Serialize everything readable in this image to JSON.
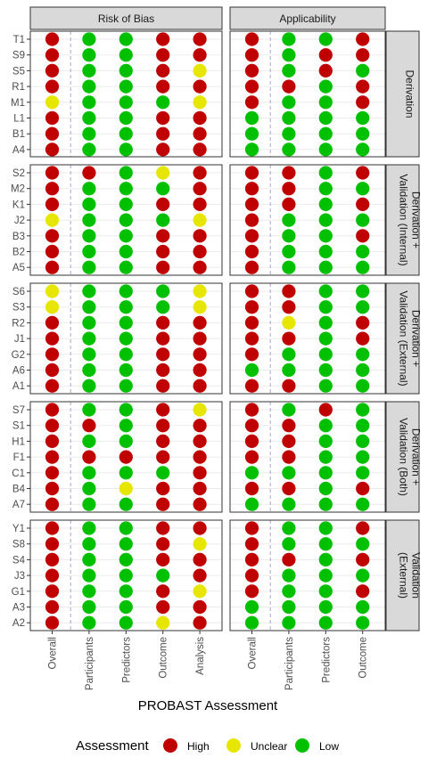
{
  "chart_data": {
    "type": "dot-matrix",
    "xlabel": "PROBAST Assessment",
    "colors": {
      "High": "#c00000",
      "Unclear": "#e6e600",
      "Low": "#00c000"
    },
    "legend": {
      "title": "Assessment",
      "position": "bottom",
      "entries": [
        {
          "label": "High",
          "color": "#c00000"
        },
        {
          "label": "Unclear",
          "color": "#e6e600"
        },
        {
          "label": "Low",
          "color": "#00c000"
        }
      ]
    },
    "columns": [
      {
        "title": "Risk of Bias",
        "categories": [
          "Overall",
          "Participants",
          "Predictors",
          "Outcome",
          "Analysis"
        ]
      },
      {
        "title": "Applicability",
        "categories": [
          "Overall",
          "Participants",
          "Predictors",
          "Outcome"
        ]
      }
    ],
    "rows": [
      {
        "title": [
          "Derivation"
        ],
        "studies": [
          "T1",
          "S9",
          "S5",
          "R1",
          "M1",
          "L1",
          "B1",
          "A4"
        ],
        "rob": [
          [
            "High",
            "Low",
            "Low",
            "High",
            "High"
          ],
          [
            "High",
            "Low",
            "Low",
            "High",
            "High"
          ],
          [
            "High",
            "Low",
            "Low",
            "High",
            "Unclear"
          ],
          [
            "High",
            "Low",
            "Low",
            "High",
            "High"
          ],
          [
            "Unclear",
            "Low",
            "Low",
            "Low",
            "Unclear"
          ],
          [
            "High",
            "Low",
            "Low",
            "High",
            "High"
          ],
          [
            "High",
            "Low",
            "Low",
            "High",
            "High"
          ],
          [
            "High",
            "Low",
            "Low",
            "High",
            "High"
          ]
        ],
        "app": [
          [
            "High",
            "Low",
            "Low",
            "High"
          ],
          [
            "High",
            "Low",
            "High",
            "High"
          ],
          [
            "High",
            "Low",
            "High",
            "Low"
          ],
          [
            "High",
            "High",
            "Low",
            "High"
          ],
          [
            "High",
            "Low",
            "Low",
            "High"
          ],
          [
            "Low",
            "Low",
            "Low",
            "Low"
          ],
          [
            "Low",
            "Low",
            "Low",
            "Low"
          ],
          [
            "Low",
            "Low",
            "Low",
            "Low"
          ]
        ]
      },
      {
        "title": [
          "Derivation +",
          "Validation (Internal)"
        ],
        "studies": [
          "S2",
          "M2",
          "K1",
          "J2",
          "B3",
          "B2",
          "A5"
        ],
        "rob": [
          [
            "High",
            "High",
            "Low",
            "Unclear",
            "High"
          ],
          [
            "High",
            "Low",
            "Low",
            "Low",
            "High"
          ],
          [
            "High",
            "Low",
            "Low",
            "High",
            "High"
          ],
          [
            "Unclear",
            "Low",
            "Low",
            "Low",
            "Unclear"
          ],
          [
            "High",
            "Low",
            "Low",
            "High",
            "High"
          ],
          [
            "High",
            "Low",
            "Low",
            "High",
            "High"
          ],
          [
            "High",
            "Low",
            "Low",
            "High",
            "High"
          ]
        ],
        "app": [
          [
            "High",
            "High",
            "Low",
            "High"
          ],
          [
            "High",
            "High",
            "Low",
            "Low"
          ],
          [
            "High",
            "High",
            "Low",
            "High"
          ],
          [
            "High",
            "Low",
            "Low",
            "Low"
          ],
          [
            "High",
            "Low",
            "Low",
            "High"
          ],
          [
            "High",
            "Low",
            "Low",
            "Low"
          ],
          [
            "High",
            "Low",
            "Low",
            "Low"
          ]
        ]
      },
      {
        "title": [
          "Derivation +",
          "Validation (External)"
        ],
        "studies": [
          "S6",
          "S3",
          "R2",
          "J1",
          "G2",
          "A6",
          "A1"
        ],
        "rob": [
          [
            "Unclear",
            "Low",
            "Low",
            "Low",
            "Unclear"
          ],
          [
            "Unclear",
            "Low",
            "Low",
            "Low",
            "Unclear"
          ],
          [
            "High",
            "Low",
            "Low",
            "High",
            "High"
          ],
          [
            "High",
            "Low",
            "Low",
            "High",
            "High"
          ],
          [
            "High",
            "Low",
            "Low",
            "High",
            "High"
          ],
          [
            "High",
            "Low",
            "Low",
            "High",
            "High"
          ],
          [
            "High",
            "Low",
            "Low",
            "High",
            "High"
          ]
        ],
        "app": [
          [
            "High",
            "High",
            "Low",
            "Low"
          ],
          [
            "High",
            "High",
            "Low",
            "Low"
          ],
          [
            "High",
            "Unclear",
            "Low",
            "High"
          ],
          [
            "High",
            "High",
            "Low",
            "High"
          ],
          [
            "High",
            "Low",
            "Low",
            "Low"
          ],
          [
            "Low",
            "Low",
            "Low",
            "Low"
          ],
          [
            "High",
            "High",
            "Low",
            "Low"
          ]
        ]
      },
      {
        "title": [
          "Derivation +",
          "Validation (Both)"
        ],
        "studies": [
          "S7",
          "S1",
          "H1",
          "F1",
          "C1",
          "B4",
          "A7"
        ],
        "rob": [
          [
            "High",
            "Low",
            "Low",
            "High",
            "Unclear"
          ],
          [
            "High",
            "High",
            "Low",
            "High",
            "High"
          ],
          [
            "High",
            "Low",
            "Low",
            "High",
            "High"
          ],
          [
            "High",
            "High",
            "High",
            "High",
            "High"
          ],
          [
            "High",
            "Low",
            "Low",
            "Low",
            "High"
          ],
          [
            "High",
            "Low",
            "Unclear",
            "High",
            "High"
          ],
          [
            "High",
            "Low",
            "Low",
            "High",
            "High"
          ]
        ],
        "app": [
          [
            "High",
            "Low",
            "High",
            "Low"
          ],
          [
            "High",
            "High",
            "Low",
            "Low"
          ],
          [
            "High",
            "High",
            "Low",
            "Low"
          ],
          [
            "High",
            "High",
            "Low",
            "Low"
          ],
          [
            "Low",
            "Low",
            "Low",
            "Low"
          ],
          [
            "High",
            "High",
            "Low",
            "High"
          ],
          [
            "Low",
            "Low",
            "Low",
            "Low"
          ]
        ]
      },
      {
        "title": [
          "Validation",
          "(External)"
        ],
        "studies": [
          "Y1",
          "S8",
          "S4",
          "J3",
          "G1",
          "A3",
          "A2"
        ],
        "rob": [
          [
            "High",
            "Low",
            "Low",
            "High",
            "High"
          ],
          [
            "High",
            "Low",
            "Low",
            "High",
            "Unclear"
          ],
          [
            "High",
            "Low",
            "Low",
            "High",
            "High"
          ],
          [
            "High",
            "Low",
            "Low",
            "Low",
            "High"
          ],
          [
            "High",
            "Low",
            "Low",
            "High",
            "Unclear"
          ],
          [
            "High",
            "Low",
            "Low",
            "High",
            "High"
          ],
          [
            "High",
            "Low",
            "Low",
            "Unclear",
            "High"
          ]
        ],
        "app": [
          [
            "High",
            "Low",
            "Low",
            "High"
          ],
          [
            "High",
            "Low",
            "Low",
            "Low"
          ],
          [
            "High",
            "High",
            "Low",
            "High"
          ],
          [
            "High",
            "Low",
            "Low",
            "Low"
          ],
          [
            "High",
            "Low",
            "Low",
            "High"
          ],
          [
            "Low",
            "Low",
            "Low",
            "Low"
          ],
          [
            "Low",
            "Low",
            "Low",
            "Low"
          ]
        ]
      }
    ]
  }
}
